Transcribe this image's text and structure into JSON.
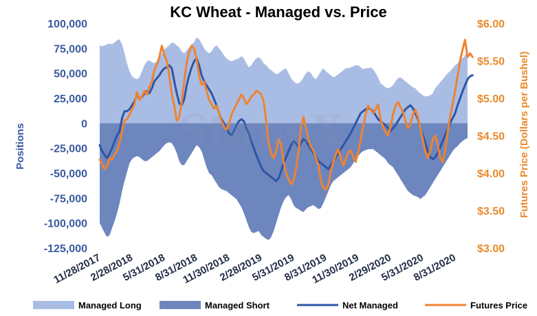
{
  "chart_data": {
    "type": "area",
    "title": "KC Wheat - Managed vs. Price",
    "ylabel_left": "Positions",
    "ylabel_right": "Futures Price (Dollars per Bushel)",
    "watermark": "StoneX",
    "y_left": {
      "lim": [
        -125000,
        100000
      ],
      "ticks": [
        100000,
        75000,
        50000,
        25000,
        0,
        -25000,
        -50000,
        -75000,
        -100000,
        -125000
      ],
      "tick_labels": [
        "100,000",
        "75,000",
        "50,000",
        "25,000",
        "0",
        "-25,000",
        "-50,000",
        "-75,000",
        "-100,000",
        "-125,000"
      ]
    },
    "y_right": {
      "lim": [
        3.0,
        6.0
      ],
      "ticks": [
        6.0,
        5.5,
        5.0,
        4.5,
        4.0,
        3.5,
        3.0
      ],
      "tick_labels": [
        "$6.00",
        "$5.50",
        "$5.00",
        "$4.50",
        "$4.00",
        "$3.50",
        "$3.00"
      ]
    },
    "x_tick_labels": [
      "11/28/2017",
      "2/28/2018",
      "5/31/2018",
      "8/31/2018",
      "11/30/2018",
      "2/28/2019",
      "5/31/2019",
      "8/31/2019",
      "11/30/2019",
      "2/29/2020",
      "5/31/2020",
      "8/31/2020"
    ],
    "x_tick_index": [
      0,
      13,
      26,
      39,
      52,
      65,
      78,
      91,
      104,
      117,
      130,
      143
    ],
    "colors": {
      "managed_long": "#a9bde4",
      "managed_short": "#6d86be",
      "net_managed": "#2f55a4",
      "futures_price": "#ee8330"
    },
    "series": [
      {
        "name": "Managed Long",
        "axis": "left",
        "type": "area",
        "values": [
          78000,
          77000,
          78000,
          79000,
          80000,
          79000,
          81000,
          83000,
          84000,
          79000,
          70000,
          60000,
          52000,
          47000,
          45000,
          44000,
          46000,
          52000,
          58000,
          62000,
          63000,
          61000,
          60000,
          62000,
          65000,
          70000,
          74000,
          76000,
          78000,
          81000,
          80000,
          78000,
          76000,
          72000,
          70000,
          73000,
          76000,
          79000,
          81000,
          86000,
          84000,
          80000,
          75000,
          72000,
          70000,
          72000,
          76000,
          78000,
          75000,
          72000,
          68000,
          65000,
          63000,
          62000,
          63000,
          64000,
          65000,
          67000,
          65000,
          60000,
          56000,
          58000,
          62000,
          65000,
          66000,
          64000,
          60000,
          58000,
          55000,
          53000,
          51000,
          49000,
          50000,
          52000,
          54000,
          55000,
          50000,
          45000,
          42000,
          40000,
          40000,
          42000,
          46000,
          50000,
          52000,
          50000,
          46000,
          44000,
          48000,
          52000,
          55000,
          52000,
          50000,
          48000,
          46000,
          47000,
          49000,
          51000,
          53000,
          55000,
          55000,
          56000,
          57000,
          58000,
          58000,
          56000,
          54000,
          55000,
          55000,
          56000,
          54000,
          50000,
          46000,
          40000,
          38000,
          36000,
          35000,
          36000,
          38000,
          42000,
          45000,
          46000,
          44000,
          42000,
          40000,
          38000,
          36000,
          35000,
          32000,
          30000,
          28000,
          27000,
          27000,
          28000,
          30000,
          35000,
          38000,
          41000,
          44000,
          47000,
          50000,
          52000,
          55000,
          58000,
          60000,
          63000,
          65000,
          68000,
          72000
        ]
      },
      {
        "name": "Managed Short",
        "axis": "left",
        "type": "area",
        "values": [
          -100000,
          -105000,
          -110000,
          -114000,
          -112000,
          -105000,
          -98000,
          -90000,
          -80000,
          -68000,
          -58000,
          -49000,
          -40000,
          -36000,
          -34000,
          -33000,
          -34000,
          -36000,
          -38000,
          -38000,
          -36000,
          -34000,
          -32000,
          -30000,
          -28000,
          -25000,
          -22000,
          -20000,
          -19000,
          -20000,
          -24000,
          -30000,
          -38000,
          -42000,
          -42000,
          -38000,
          -34000,
          -30000,
          -26000,
          -22000,
          -24000,
          -28000,
          -36000,
          -44000,
          -50000,
          -52000,
          -56000,
          -60000,
          -64000,
          -66000,
          -67000,
          -68000,
          -70000,
          -72000,
          -74000,
          -76000,
          -80000,
          -84000,
          -90000,
          -97000,
          -104000,
          -109000,
          -110000,
          -109000,
          -108000,
          -112000,
          -114000,
          -116000,
          -117000,
          -114000,
          -108000,
          -100000,
          -92000,
          -84000,
          -78000,
          -74000,
          -72000,
          -76000,
          -82000,
          -85000,
          -86000,
          -88000,
          -89000,
          -86000,
          -84000,
          -83000,
          -82000,
          -84000,
          -86000,
          -85000,
          -80000,
          -74000,
          -68000,
          -62000,
          -58000,
          -56000,
          -54000,
          -52000,
          -50000,
          -48000,
          -46000,
          -44000,
          -40000,
          -36000,
          -33000,
          -30000,
          -28000,
          -27000,
          -26000,
          -26000,
          -26000,
          -28000,
          -30000,
          -32000,
          -34000,
          -36000,
          -40000,
          -42000,
          -44000,
          -48000,
          -52000,
          -56000,
          -60000,
          -64000,
          -68000,
          -70000,
          -72000,
          -73000,
          -74000,
          -76000,
          -74000,
          -72000,
          -68000,
          -64000,
          -60000,
          -56000,
          -52000,
          -48000,
          -44000,
          -40000,
          -36000,
          -32000,
          -28000,
          -25000,
          -23000,
          -20000,
          -18000,
          -16000,
          -15000
        ]
      },
      {
        "name": "Net Managed",
        "axis": "left",
        "type": "line",
        "values": [
          -22000,
          -28000,
          -32000,
          -35000,
          -30000,
          -25000,
          -18000,
          -12000,
          -8000,
          5000,
          12000,
          12000,
          14000,
          18000,
          22000,
          28000,
          25000,
          26000,
          30000,
          32000,
          30000,
          35000,
          42000,
          45000,
          48000,
          52000,
          55000,
          56000,
          58000,
          55000,
          42000,
          30000,
          20000,
          18000,
          24000,
          38000,
          48000,
          56000,
          62000,
          65000,
          58000,
          48000,
          42000,
          38000,
          34000,
          30000,
          24000,
          18000,
          10000,
          4000,
          0,
          -5000,
          -10000,
          -12000,
          -8000,
          -2000,
          2000,
          4000,
          2000,
          -5000,
          -10000,
          -18000,
          -25000,
          -32000,
          -38000,
          -44000,
          -48000,
          -50000,
          -52000,
          -54000,
          -56000,
          -58000,
          -55000,
          -48000,
          -40000,
          -34000,
          -28000,
          -22000,
          -18000,
          -20000,
          -24000,
          -20000,
          -16000,
          -18000,
          -22000,
          -26000,
          -30000,
          -34000,
          -38000,
          -40000,
          -42000,
          -44000,
          -46000,
          -42000,
          -38000,
          -34000,
          -30000,
          -26000,
          -22000,
          -18000,
          -14000,
          -10000,
          -5000,
          0,
          5000,
          10000,
          12000,
          14000,
          15000,
          14000,
          12000,
          8000,
          4000,
          2000,
          0,
          -2000,
          -5000,
          -8000,
          -5000,
          -2000,
          2000,
          6000,
          10000,
          14000,
          16000,
          18000,
          15000,
          10000,
          4000,
          -5000,
          -12000,
          -20000,
          -28000,
          -34000,
          -36000,
          -34000,
          -30000,
          -24000,
          -18000,
          -12000,
          -6000,
          0,
          5000,
          10000,
          18000,
          25000,
          32000,
          38000,
          44000,
          47000,
          48000
        ]
      },
      {
        "name": "Futures Price",
        "axis": "right",
        "type": "line",
        "values": [
          4.18,
          4.12,
          4.05,
          4.1,
          4.2,
          4.18,
          4.25,
          4.3,
          4.4,
          4.55,
          4.7,
          4.72,
          4.78,
          4.85,
          4.92,
          5.08,
          4.98,
          5.02,
          5.1,
          5.05,
          5.15,
          5.22,
          5.38,
          5.45,
          5.55,
          5.7,
          5.58,
          5.5,
          5.3,
          5.05,
          4.9,
          4.7,
          4.75,
          4.95,
          5.22,
          5.48,
          5.62,
          5.7,
          5.66,
          5.52,
          5.3,
          5.18,
          5.22,
          5.1,
          4.98,
          4.92,
          4.86,
          4.9,
          4.8,
          4.7,
          4.62,
          4.58,
          4.65,
          4.78,
          4.85,
          4.92,
          4.98,
          5.05,
          5.0,
          4.92,
          4.96,
          5.02,
          5.05,
          5.1,
          5.08,
          5.05,
          4.95,
          4.7,
          4.4,
          4.25,
          4.2,
          4.3,
          4.45,
          4.38,
          4.15,
          4.0,
          3.92,
          3.85,
          3.9,
          4.05,
          4.3,
          4.62,
          4.75,
          4.6,
          4.45,
          4.35,
          4.3,
          4.2,
          4.1,
          3.9,
          3.8,
          3.78,
          3.85,
          4.02,
          4.15,
          4.25,
          4.32,
          4.2,
          4.1,
          4.18,
          4.28,
          4.3,
          4.22,
          4.15,
          4.28,
          4.45,
          4.62,
          4.78,
          4.9,
          4.85,
          4.8,
          4.85,
          4.92,
          4.72,
          4.62,
          4.55,
          4.5,
          4.62,
          4.78,
          4.9,
          4.95,
          4.88,
          4.82,
          4.7,
          4.6,
          4.65,
          4.78,
          4.85,
          4.75,
          4.6,
          4.45,
          4.28,
          4.2,
          4.3,
          4.45,
          4.5,
          4.38,
          4.2,
          4.15,
          4.3,
          4.55,
          4.75,
          4.92,
          5.1,
          5.3,
          5.5,
          5.65,
          5.78,
          5.55,
          5.6,
          5.55
        ]
      }
    ],
    "legend": {
      "position": "bottom",
      "items": [
        {
          "label": "Managed Long",
          "kind": "box",
          "color": "#a9bde4"
        },
        {
          "label": "Managed Short",
          "kind": "box",
          "color": "#6d86be"
        },
        {
          "label": "Net Managed",
          "kind": "line",
          "color": "#2f55a4"
        },
        {
          "label": "Futures Price",
          "kind": "line",
          "color": "#ee8330"
        }
      ]
    }
  }
}
